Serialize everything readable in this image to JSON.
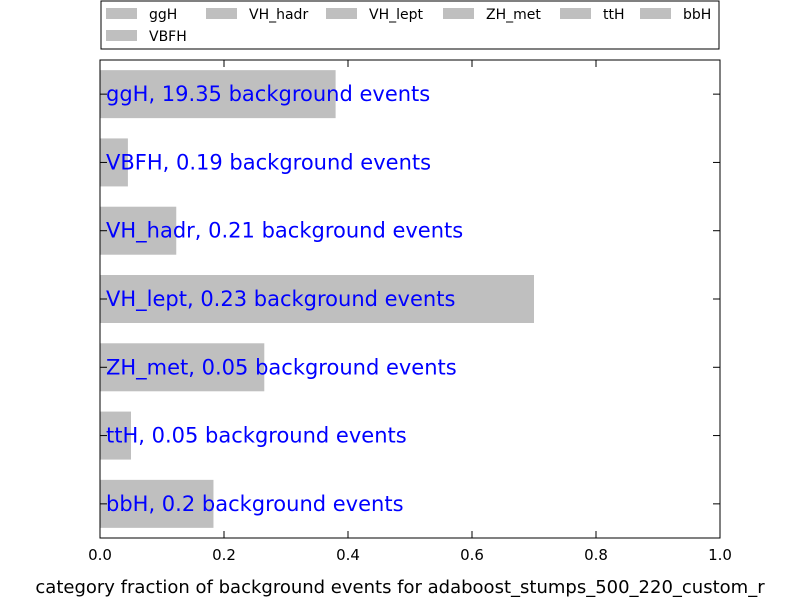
{
  "chart_data": {
    "type": "bar",
    "orientation": "horizontal",
    "categories": [
      "ggH",
      "VBFH",
      "VH_hadr",
      "VH_lept",
      "ZH_met",
      "ttH",
      "bbH"
    ],
    "values": [
      0.38,
      0.045,
      0.123,
      0.7,
      0.265,
      0.05,
      0.183
    ],
    "bar_labels": [
      "ggH, 19.35 background events",
      "VBFH, 0.19 background events",
      "VH_hadr, 0.21 background events",
      "VH_lept, 0.23 background events",
      "ZH_met, 0.05 background events",
      "ttH, 0.05 background events",
      "bbH, 0.2 background events"
    ],
    "legend": [
      "ggH",
      "VH_hadr",
      "VH_lept",
      "ZH_met",
      "ttH",
      "bbH",
      "VBFH"
    ],
    "legend_placement": "top, outside plot",
    "xlabel": "category fraction of background events for adaboost_stumps_500_220_custom_r",
    "ylabel": "",
    "xlim": [
      0.0,
      1.0
    ],
    "xticks": [
      "0.0",
      "0.2",
      "0.4",
      "0.6",
      "0.8",
      "1.0"
    ],
    "grid": false,
    "colors": {
      "bar": "#bfbfbf",
      "label_text": "#0000ff",
      "axis": "#000000"
    }
  }
}
